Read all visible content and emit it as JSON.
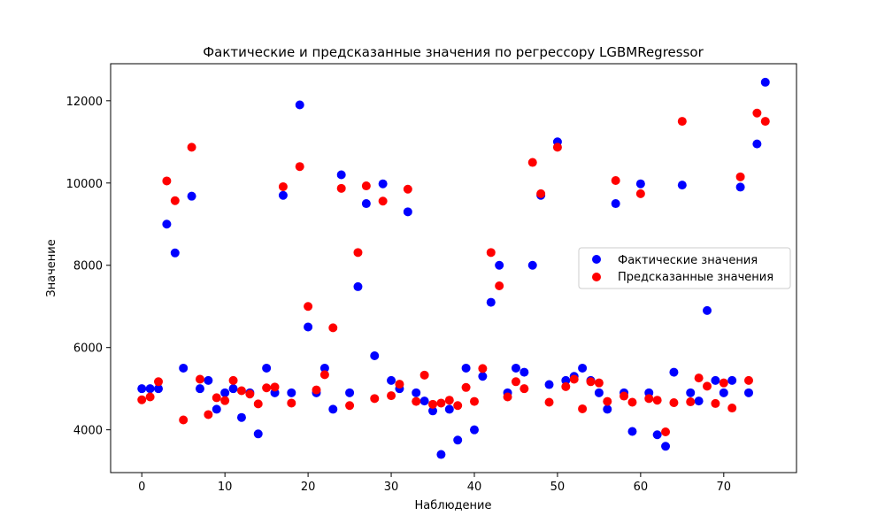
{
  "chart_data": {
    "type": "scatter",
    "title": "Фактические и предсказанные значения по регрессору LGBMRegressor",
    "xlabel": "Наблюдение",
    "ylabel": "Значение",
    "xlim": [
      -3.75,
      78.75
    ],
    "ylim": [
      2960,
      12900
    ],
    "xticks": [
      0,
      10,
      20,
      30,
      40,
      50,
      60,
      70
    ],
    "yticks": [
      4000,
      6000,
      8000,
      10000,
      12000
    ],
    "grid": false,
    "legend_position": "center-right",
    "series": [
      {
        "name": "Фактические значения",
        "color": "#0000ff",
        "x": [
          0,
          1,
          2,
          3,
          4,
          5,
          6,
          7,
          8,
          9,
          10,
          11,
          12,
          13,
          14,
          15,
          16,
          17,
          18,
          19,
          20,
          21,
          22,
          23,
          24,
          25,
          26,
          27,
          28,
          29,
          30,
          31,
          32,
          33,
          34,
          35,
          36,
          37,
          38,
          39,
          40,
          41,
          42,
          43,
          44,
          45,
          46,
          47,
          48,
          49,
          50,
          51,
          52,
          53,
          54,
          55,
          56,
          57,
          58,
          59,
          60,
          61,
          62,
          63,
          64,
          65,
          66,
          67,
          68,
          69,
          70,
          71,
          72,
          73,
          74,
          75
        ],
        "y": [
          5000,
          5000,
          5000,
          9000,
          8300,
          5500,
          9680,
          5000,
          5200,
          4500,
          4900,
          5000,
          4300,
          4900,
          3900,
          5500,
          4900,
          9700,
          4900,
          11900,
          6500,
          4900,
          5500,
          4500,
          10200,
          4900,
          7480,
          9500,
          5800,
          9980,
          5200,
          5000,
          9300,
          4900,
          4700,
          4460,
          3400,
          4500,
          3750,
          5500,
          4000,
          5300,
          7100,
          8000,
          4900,
          5500,
          5400,
          8000,
          9700,
          5100,
          11000,
          5200,
          5300,
          5500,
          5200,
          4900,
          4500,
          9500,
          4900,
          3960,
          9980,
          4900,
          3880,
          3600,
          5400,
          9950,
          4900,
          4700,
          6900,
          5200,
          4900,
          5200,
          9900,
          4900,
          10950,
          12450
        ]
      },
      {
        "name": "Предсказанные значения",
        "color": "#ff0000",
        "x": [
          0,
          1,
          2,
          3,
          4,
          5,
          6,
          7,
          8,
          9,
          10,
          11,
          12,
          13,
          14,
          15,
          16,
          17,
          18,
          19,
          20,
          21,
          22,
          23,
          24,
          25,
          26,
          27,
          28,
          29,
          30,
          31,
          32,
          33,
          34,
          35,
          36,
          37,
          38,
          39,
          40,
          41,
          42,
          43,
          44,
          45,
          46,
          47,
          48,
          49,
          50,
          51,
          52,
          53,
          54,
          55,
          56,
          57,
          58,
          59,
          60,
          61,
          62,
          63,
          64,
          65,
          66,
          67,
          68,
          69,
          70,
          71,
          72,
          73,
          74,
          75
        ],
        "y": [
          4730,
          4800,
          5170,
          10050,
          9570,
          4240,
          10870,
          5230,
          4370,
          4780,
          4710,
          5200,
          4950,
          4870,
          4630,
          5020,
          5040,
          9910,
          4650,
          10400,
          7000,
          4970,
          5340,
          6480,
          9870,
          4590,
          8310,
          9930,
          4760,
          9560,
          4830,
          5110,
          9850,
          4690,
          5330,
          4620,
          4650,
          4720,
          4590,
          5030,
          4690,
          5490,
          8310,
          7500,
          4800,
          5170,
          5000,
          10500,
          9740,
          4670,
          10870,
          5050,
          5230,
          4510,
          5170,
          5140,
          4690,
          10060,
          4820,
          4670,
          9740,
          4760,
          4720,
          3950,
          4660,
          11500,
          4680,
          5260,
          5060,
          4640,
          5140,
          4530,
          10150,
          5200,
          11700,
          11500
        ]
      }
    ]
  }
}
